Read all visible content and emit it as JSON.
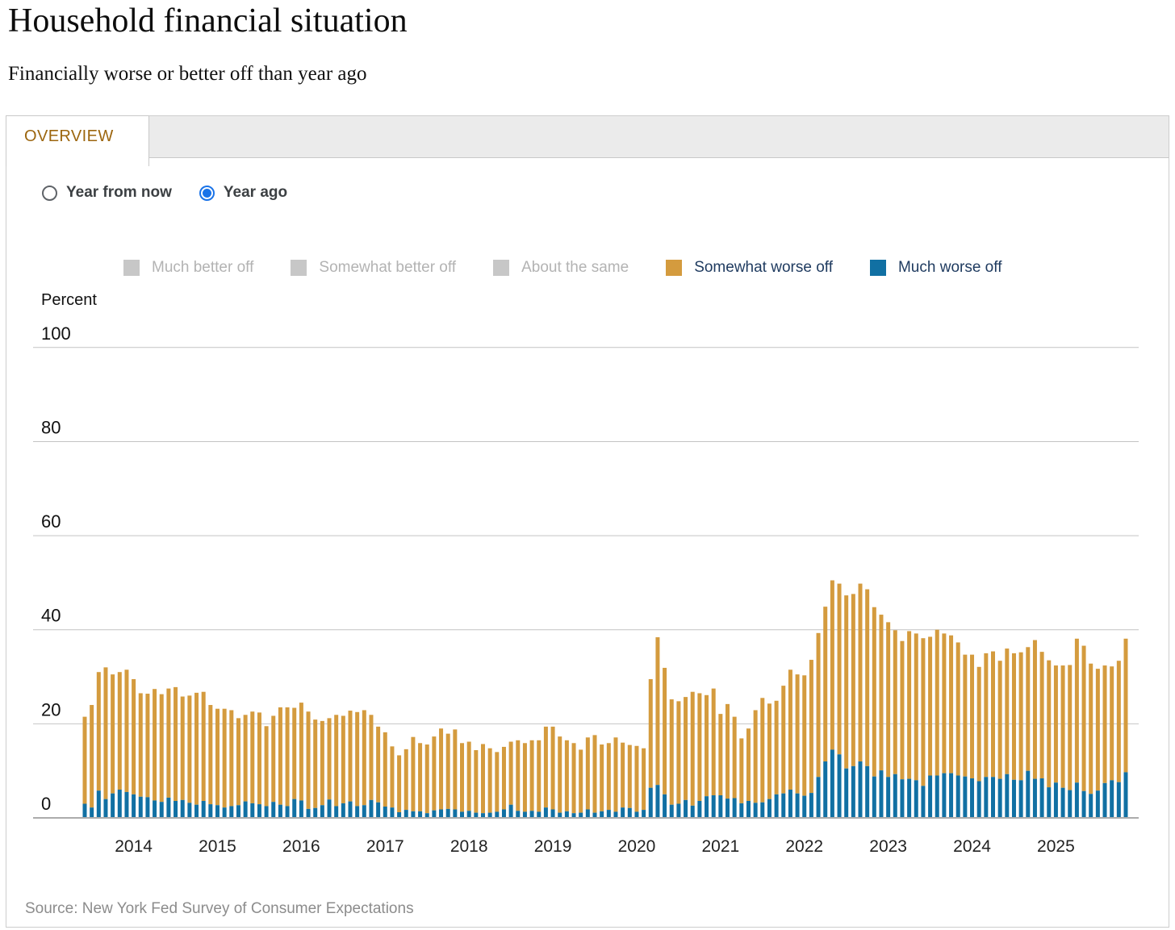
{
  "page": {
    "title": "Household financial situation",
    "subtitle": "Financially worse or better off than year ago"
  },
  "tabs": {
    "overview_label": "OVERVIEW"
  },
  "controls": {
    "radios": [
      {
        "label": "Year from now",
        "selected": false
      },
      {
        "label": "Year ago",
        "selected": true
      }
    ]
  },
  "legend": {
    "items": [
      {
        "label": "Much better off",
        "color": "#c7c7c7",
        "active": false
      },
      {
        "label": "Somewhat better off",
        "color": "#c7c7c7",
        "active": false
      },
      {
        "label": "About the same",
        "color": "#c7c7c7",
        "active": false
      },
      {
        "label": "Somewhat worse off",
        "color": "#d49b3e",
        "active": true
      },
      {
        "label": "Much worse off",
        "color": "#1170a3",
        "active": true
      }
    ]
  },
  "colors": {
    "somewhat_worse": "#d49b3e",
    "much_worse": "#1170a3",
    "gridline": "#c4c4c4",
    "baseline": "#acacac",
    "tab_text": "#9c660f",
    "radio_selected": "#1a73e8"
  },
  "chart_data": {
    "type": "bar",
    "stacked": true,
    "title": "Household financial situation",
    "xlabel": "",
    "ylabel": "Percent",
    "ylim": [
      0,
      100
    ],
    "yticks": [
      0,
      20,
      40,
      60,
      80,
      100
    ],
    "grid": true,
    "legend_position": "top",
    "x_monthly_start": "2013-06",
    "x_monthly_end": "2025-11",
    "n_months": 150,
    "x_tick_labels": [
      "2014",
      "2015",
      "2016",
      "2017",
      "2018",
      "2019",
      "2020",
      "2021",
      "2022",
      "2023",
      "2024",
      "2025"
    ],
    "series": [
      {
        "name": "Much worse off",
        "color": "#1170a3",
        "values": [
          3.0,
          2.2,
          5.8,
          4.0,
          5.2,
          6.0,
          5.5,
          5.0,
          4.5,
          4.4,
          3.7,
          3.4,
          4.3,
          3.6,
          3.8,
          3.2,
          2.8,
          3.6,
          2.9,
          2.7,
          2.2,
          2.5,
          2.7,
          3.5,
          3.1,
          2.9,
          2.5,
          3.4,
          2.8,
          2.5,
          4.0,
          3.7,
          1.9,
          2.1,
          2.7,
          3.9,
          2.5,
          3.1,
          3.5,
          2.5,
          2.7,
          3.8,
          3.3,
          2.4,
          2.2,
          1.2,
          1.7,
          1.4,
          1.4,
          1.0,
          1.6,
          1.8,
          1.9,
          1.8,
          1.3,
          1.5,
          1.1,
          1.0,
          1.1,
          1.3,
          1.8,
          2.8,
          1.5,
          1.3,
          1.5,
          1.3,
          2.2,
          1.8,
          1.1,
          1.4,
          1.0,
          1.1,
          1.8,
          1.1,
          1.4,
          1.7,
          1.3,
          2.2,
          2.1,
          1.3,
          1.7,
          6.4,
          7.0,
          5.0,
          2.8,
          3.0,
          3.8,
          2.6,
          3.6,
          4.6,
          4.8,
          4.8,
          4.1,
          4.2,
          3.1,
          3.6,
          3.2,
          3.3,
          4.0,
          5.0,
          5.2,
          6.0,
          5.2,
          4.7,
          5.3,
          8.7,
          12.0,
          14.5,
          13.5,
          10.5,
          11.0,
          12.0,
          11.0,
          8.8,
          10.1,
          8.7,
          9.3,
          8.2,
          8.3,
          8.0,
          6.8,
          9.0,
          9.0,
          9.5,
          9.5,
          9.0,
          8.8,
          8.4,
          7.8,
          8.7,
          8.7,
          8.3,
          9.3,
          8.1,
          8.0,
          10.0,
          8.3,
          8.4,
          6.5,
          7.5,
          6.4,
          5.9,
          7.5,
          5.7,
          5.1,
          5.8,
          7.4,
          8.0,
          7.6,
          9.7
        ]
      },
      {
        "name": "Somewhat worse off",
        "color": "#d49b3e",
        "values": [
          18.5,
          21.8,
          25.2,
          28.0,
          25.3,
          25.0,
          26.0,
          24.5,
          22.0,
          22.0,
          23.7,
          22.9,
          23.2,
          24.2,
          22.0,
          22.8,
          23.8,
          23.2,
          21.1,
          20.5,
          21.0,
          20.4,
          18.5,
          18.4,
          19.5,
          19.5,
          17.0,
          18.3,
          20.7,
          21.0,
          19.4,
          20.8,
          20.7,
          18.8,
          17.9,
          17.3,
          19.4,
          18.6,
          19.3,
          20.0,
          20.2,
          18.1,
          16.1,
          15.8,
          13.0,
          12.1,
          12.9,
          15.8,
          14.5,
          14.6,
          15.7,
          17.2,
          16.0,
          17.0,
          14.6,
          14.7,
          13.3,
          14.7,
          13.7,
          12.7,
          13.3,
          13.4,
          15.0,
          14.6,
          15.0,
          15.2,
          17.2,
          17.6,
          16.2,
          15.1,
          14.9,
          13.4,
          15.3,
          16.5,
          14.2,
          14.2,
          15.8,
          13.8,
          13.4,
          14.0,
          13.1,
          23.1,
          31.4,
          26.9,
          22.4,
          21.8,
          21.9,
          24.2,
          22.9,
          21.5,
          22.7,
          17.3,
          20.1,
          17.3,
          13.8,
          15.4,
          19.7,
          22.2,
          20.3,
          19.9,
          22.9,
          25.5,
          25.3,
          25.6,
          28.3,
          30.6,
          32.9,
          36.0,
          36.3,
          36.8,
          36.6,
          37.8,
          37.6,
          36.0,
          33.1,
          32.9,
          30.6,
          29.4,
          31.4,
          31.2,
          31.4,
          29.5,
          31.0,
          29.7,
          29.3,
          28.3,
          25.9,
          26.3,
          24.3,
          26.3,
          26.7,
          25.1,
          26.7,
          26.9,
          27.2,
          26.3,
          29.5,
          26.9,
          27.0,
          24.9,
          26.0,
          26.6,
          30.6,
          30.9,
          27.7,
          25.9,
          25.0,
          24.2,
          25.8,
          28.4
        ]
      }
    ]
  },
  "source": {
    "text": "Source: New York Fed Survey of Consumer Expectations"
  }
}
